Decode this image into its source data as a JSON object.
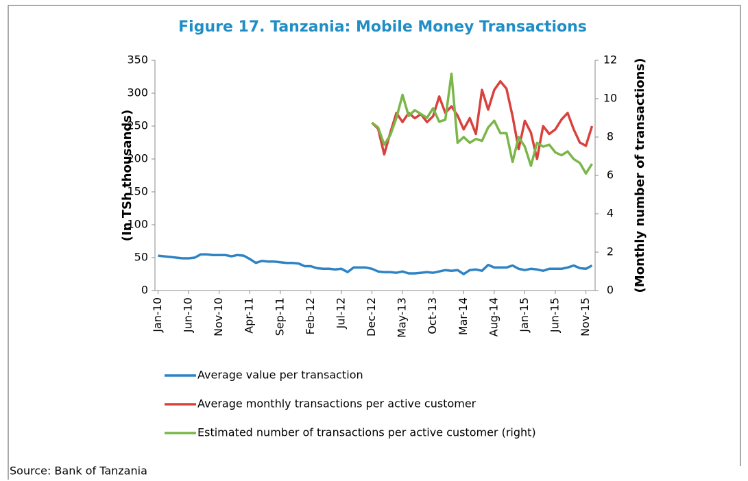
{
  "chart_data": {
    "type": "line",
    "title": "Figure 17. Tanzania: Mobile Money Transactions",
    "y_label": "(In TSh thousands)",
    "y2_label": "(Monthly number of transactions)",
    "source": "Source: Bank of Tanzania",
    "categories": [
      "Jan-10",
      null,
      null,
      null,
      null,
      "Jun-10",
      null,
      null,
      null,
      null,
      "Nov-10",
      null,
      null,
      null,
      null,
      "Apr-11",
      null,
      null,
      null,
      null,
      "Sep-11",
      null,
      null,
      null,
      null,
      "Feb-12",
      null,
      null,
      null,
      null,
      "Jul-12",
      null,
      null,
      null,
      null,
      "Dec-12",
      null,
      null,
      null,
      null,
      "May-13",
      null,
      null,
      null,
      null,
      "Oct-13",
      null,
      null,
      null,
      null,
      "Mar-14",
      null,
      null,
      null,
      null,
      "Aug-14",
      null,
      null,
      null,
      null,
      "Jan-15",
      null,
      null,
      null,
      null,
      "Jun-15",
      null,
      null,
      null,
      null,
      "Nov-15",
      null
    ],
    "ylim": [
      0,
      350
    ],
    "yticks": [
      0,
      50,
      100,
      150,
      200,
      250,
      300,
      350
    ],
    "y2lim": [
      0,
      12
    ],
    "y2ticks": [
      0,
      2,
      4,
      6,
      8,
      10,
      12
    ],
    "series": [
      {
        "name": "Average value per transaction",
        "color": "#2e83c4",
        "values": [
          53,
          52,
          51,
          50,
          49,
          49,
          50,
          55,
          55,
          54,
          54,
          54,
          52,
          54,
          53,
          48,
          42,
          45,
          44,
          44,
          43,
          42,
          42,
          41,
          37,
          37,
          34,
          33,
          33,
          32,
          33,
          28,
          35,
          35,
          35,
          33,
          29,
          28,
          28,
          27,
          29,
          26,
          26,
          27,
          28,
          27,
          29,
          31,
          30,
          31,
          25,
          31,
          32,
          30,
          39,
          35,
          35,
          35,
          38,
          33,
          31,
          33,
          32,
          30,
          33,
          33,
          33,
          35,
          38,
          34,
          33,
          38
        ]
      },
      {
        "name": "Average monthly transactions per active customer",
        "color": "#d9413d",
        "values": [
          null,
          null,
          null,
          null,
          null,
          null,
          null,
          null,
          null,
          null,
          null,
          null,
          null,
          null,
          null,
          null,
          null,
          null,
          null,
          null,
          null,
          null,
          null,
          null,
          null,
          null,
          null,
          null,
          null,
          null,
          null,
          null,
          null,
          null,
          null,
          255,
          246,
          207,
          240,
          270,
          256,
          270,
          262,
          268,
          256,
          265,
          295,
          270,
          280,
          266,
          245,
          262,
          238,
          305,
          275,
          305,
          318,
          307,
          265,
          215,
          258,
          240,
          200,
          250,
          238,
          245,
          260,
          270,
          245,
          225,
          220,
          250
        ]
      },
      {
        "name": "Estimated number of transactions per active customer (right)",
        "color": "#7ab648",
        "axis": "y2",
        "values": [
          null,
          null,
          null,
          null,
          null,
          null,
          null,
          null,
          null,
          null,
          null,
          null,
          null,
          null,
          null,
          null,
          null,
          null,
          null,
          null,
          null,
          null,
          null,
          null,
          null,
          null,
          null,
          null,
          null,
          null,
          null,
          null,
          null,
          null,
          null,
          8.75,
          8.5,
          7.6,
          8.1,
          9,
          10.2,
          9.1,
          9.4,
          9.2,
          9,
          9.5,
          8.8,
          8.9,
          11.3,
          7.7,
          8,
          7.7,
          7.9,
          7.8,
          8.5,
          8.85,
          8.2,
          8.2,
          6.7,
          8,
          7.5,
          6.5,
          7.7,
          7.5,
          7.6,
          7.2,
          7.05,
          7.25,
          6.85,
          6.65,
          6.1,
          6.6
        ]
      }
    ]
  }
}
